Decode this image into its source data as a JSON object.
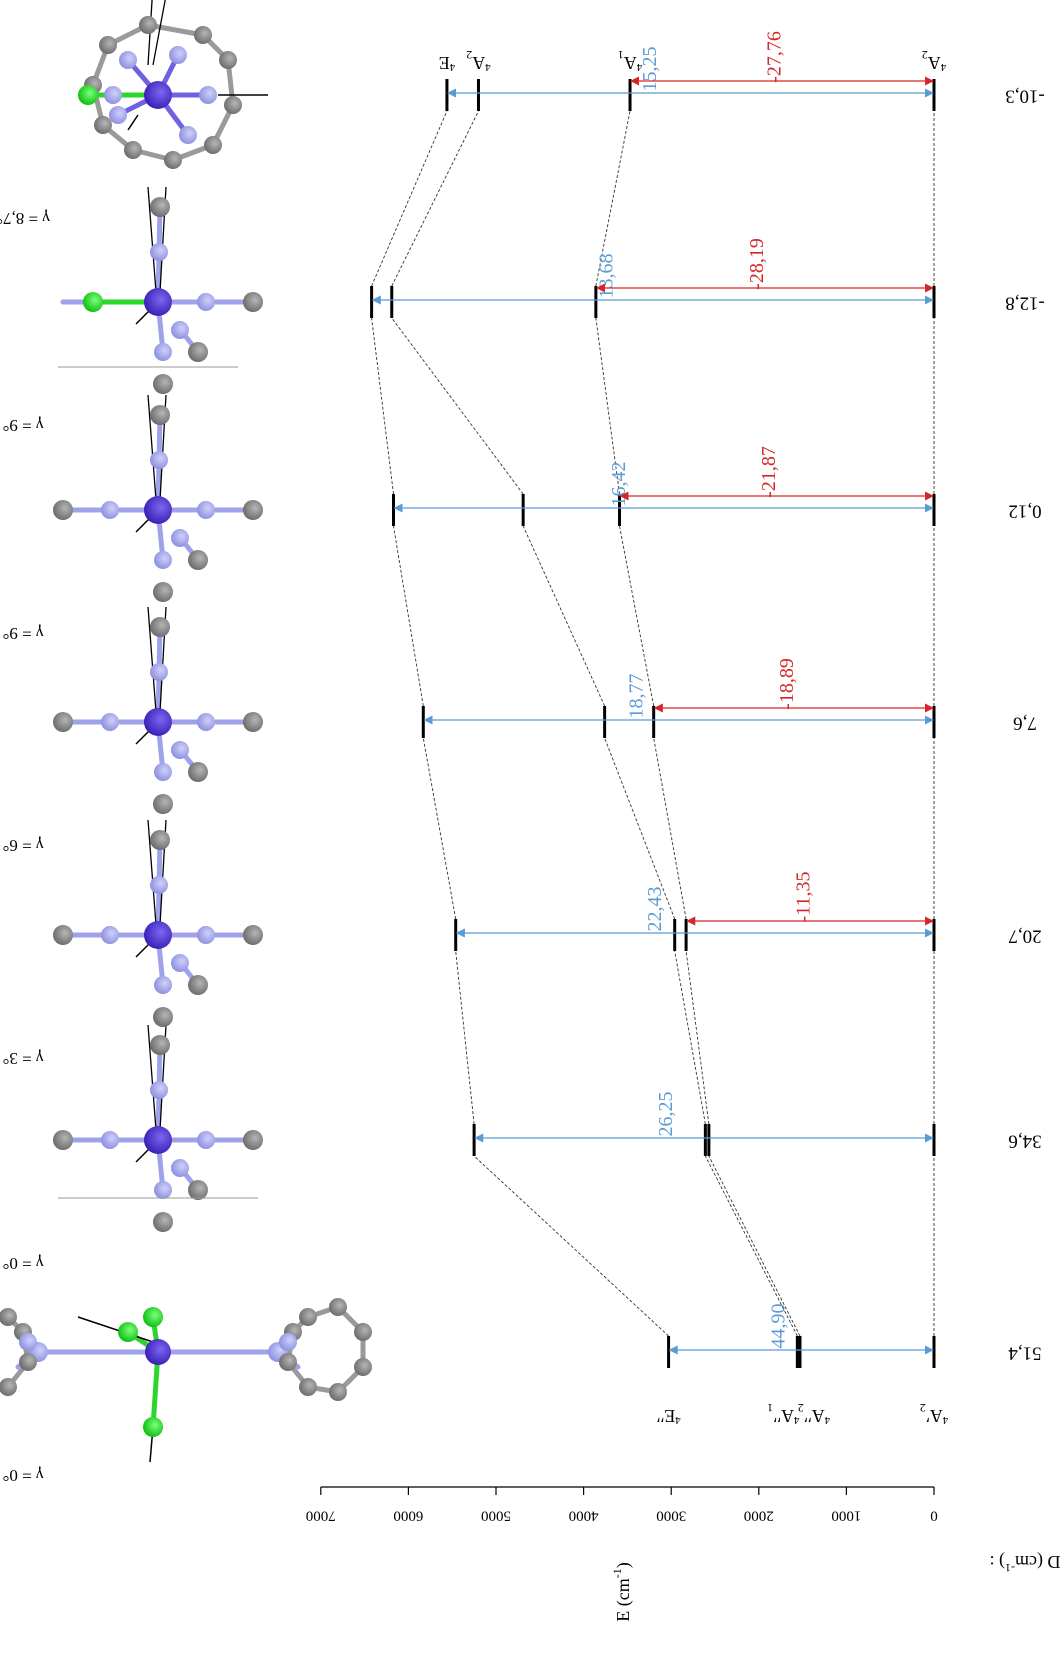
{
  "chart_data": {
    "type": "level-diagram",
    "ylabel": "E (cm",
    "ylabel_sup": "-1",
    "ylabel_end": ")",
    "ylim": [
      0,
      7000
    ],
    "yticks": [
      0,
      1000,
      2000,
      3000,
      4000,
      5000,
      6000,
      7000
    ],
    "d_label": "D (cm",
    "d_label_sup": "-1",
    "d_label_end": ") :",
    "colors": {
      "blue": "#5b9bd5",
      "red": "#d62728",
      "black": "#000000",
      "green": "#22e622",
      "co": "#5035d6",
      "n": "#a4a6ec",
      "c": "#8e8e8e"
    },
    "columns": [
      {
        "gamma": "γ = 0°",
        "d_value": "51,4",
        "structure": "tripod",
        "levels": [
          0,
          1530,
          1560,
          3030
        ],
        "level_labels": [
          {
            "sup": "4",
            "main": "A",
            "prime": "′",
            "sub": "2",
            "level": 0
          },
          {
            "sup": "4",
            "main": "A",
            "prime": "′′",
            "sub": "2",
            "level": 1530
          },
          {
            "sup": "4",
            "main": "A",
            "prime": "′′",
            "sub": "1",
            "level": 1560
          },
          {
            "sup": "4",
            "main": "E",
            "prime": "′′",
            "sub": "",
            "level": 3030
          }
        ],
        "arrows": [
          {
            "color": "blue",
            "from": 0,
            "to": 3030,
            "label": "44,90"
          }
        ]
      },
      {
        "gamma": "γ = 0°",
        "d_value": "34,6",
        "structure": "octa",
        "levels": [
          0,
          2570,
          2610,
          5250
        ],
        "arrows": [
          {
            "color": "blue",
            "from": 0,
            "to": 5250,
            "label": "26,25"
          }
        ]
      },
      {
        "gamma": "γ = 3°",
        "d_value": "20,7",
        "structure": "octa",
        "levels": [
          0,
          2830,
          2960,
          5460
        ],
        "arrows": [
          {
            "color": "blue",
            "from": 0,
            "to": 5460,
            "label": "22,43"
          },
          {
            "color": "red",
            "from": 0,
            "to": 2830,
            "label": "-11,35"
          }
        ]
      },
      {
        "gamma": "γ = 6°",
        "d_value": "7,6",
        "structure": "octa",
        "levels": [
          0,
          3200,
          3760,
          5830
        ],
        "arrows": [
          {
            "color": "blue",
            "from": 0,
            "to": 5830,
            "label": "18,77"
          },
          {
            "color": "red",
            "from": 0,
            "to": 3200,
            "label": "-18,89"
          }
        ]
      },
      {
        "gamma": "γ = 9°",
        "d_value": "0,12",
        "structure": "octa",
        "levels": [
          0,
          3590,
          4690,
          6170
        ],
        "arrows": [
          {
            "color": "blue",
            "from": 0,
            "to": 6170,
            "label": "16,42"
          },
          {
            "color": "red",
            "from": 0,
            "to": 3590,
            "label": "-21,87"
          }
        ]
      },
      {
        "gamma": "γ = 9°",
        "d_value": "-12,8",
        "structure": "octa-cl",
        "levels": [
          0,
          3860,
          6190,
          6420
        ],
        "arrows": [
          {
            "color": "blue",
            "from": 0,
            "to": 6420,
            "label": "13,68"
          },
          {
            "color": "red",
            "from": 0,
            "to": 3860,
            "label": "-28,19"
          }
        ]
      },
      {
        "gamma": "γ = 8,7°",
        "d_value": "-10,3",
        "structure": "cage",
        "levels": [
          0,
          3470,
          5200,
          5560
        ],
        "level_labels": [
          {
            "sup": "4",
            "main": "A",
            "prime": "",
            "sub": "2",
            "level": 0
          },
          {
            "sup": "4",
            "main": "A",
            "prime": "",
            "sub": "1",
            "level": 3470
          },
          {
            "sup": "4",
            "main": "A",
            "prime": "",
            "sub": "2",
            "level": 5200
          },
          {
            "sup": "4",
            "main": "E",
            "prime": "",
            "sub": "",
            "level": 5560
          }
        ],
        "arrows": [
          {
            "color": "blue",
            "from": 0,
            "to": 5560,
            "label": "15,25"
          },
          {
            "color": "red",
            "from": 0,
            "to": 3470,
            "label": "-27,76"
          }
        ]
      }
    ]
  }
}
